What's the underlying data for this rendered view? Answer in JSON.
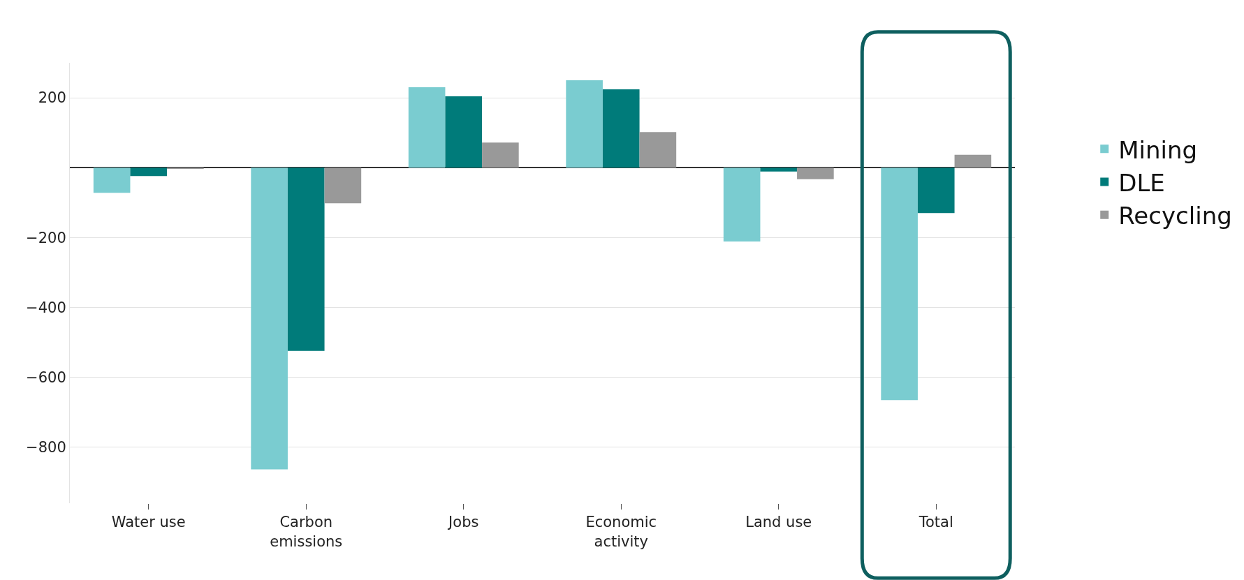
{
  "chart_data": {
    "type": "bar",
    "categories": [
      "Water use",
      "Carbon\nemissions",
      "Jobs",
      "Economic\nactivity",
      "Land use",
      "Total"
    ],
    "series": [
      {
        "name": "Mining",
        "color": "#7accd0",
        "values": [
          -72,
          -863,
          230,
          250,
          -211,
          -665
        ]
      },
      {
        "name": "DLE",
        "color": "#007b7a",
        "values": [
          -24,
          -524,
          204,
          224,
          -11,
          -130
        ]
      },
      {
        "name": "Recycling",
        "color": "#999999",
        "values": [
          -2,
          -102,
          72,
          102,
          -33,
          37
        ]
      }
    ],
    "ylim": [
      -960,
      300
    ],
    "yticks": [
      {
        "value": 200,
        "label": "200"
      },
      {
        "value": -200,
        "label": "−200"
      },
      {
        "value": -400,
        "label": "−400"
      },
      {
        "value": -600,
        "label": "−600"
      },
      {
        "value": -800,
        "label": "−800"
      }
    ],
    "grid": "y",
    "legend": "right"
  }
}
